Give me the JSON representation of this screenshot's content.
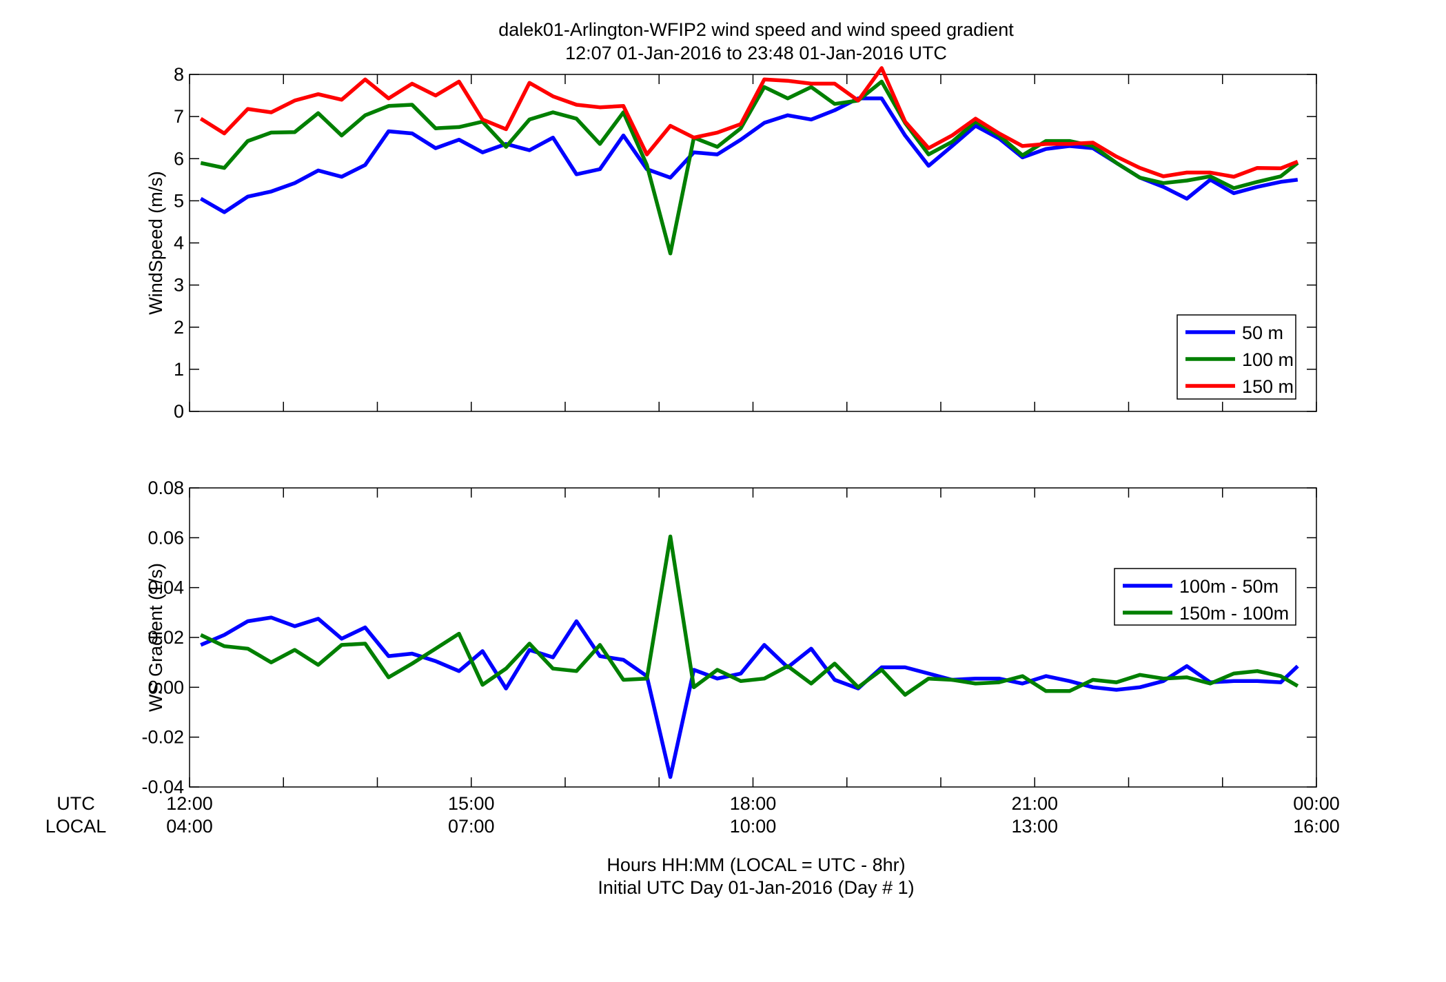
{
  "figure": {
    "title_line1": "dalek01-Arlington-WFIP2  wind speed and wind speed gradient",
    "title_line2": "12:07 01-Jan-2016 to 23:48 01-Jan-2016  UTC",
    "xlabel_line1": "Hours HH:MM  (LOCAL = UTC - 8hr)",
    "xlabel_line2": "Initial UTC Day 01-Jan-2016 (Day # 1)",
    "row_label_utc": "UTC",
    "row_label_local": "LOCAL",
    "utc_ticks": [
      "12:00",
      "15:00",
      "18:00",
      "21:00",
      "00:00"
    ],
    "local_ticks": [
      "04:00",
      "07:00",
      "10:00",
      "13:00",
      "16:00"
    ]
  },
  "chart_data": [
    {
      "type": "line",
      "ylabel": "WindSpeed (m/s)",
      "ylim": [
        0,
        8
      ],
      "yticks": [
        0,
        1,
        2,
        3,
        4,
        5,
        6,
        7,
        8
      ],
      "xlim": [
        12,
        24
      ],
      "grid": false,
      "legend_position": "lower-right",
      "x": [
        12.12,
        12.37,
        12.62,
        12.87,
        13.12,
        13.37,
        13.62,
        13.87,
        14.12,
        14.37,
        14.62,
        14.87,
        15.12,
        15.37,
        15.62,
        15.87,
        16.12,
        16.37,
        16.62,
        16.87,
        17.12,
        17.37,
        17.62,
        17.87,
        18.12,
        18.37,
        18.62,
        18.87,
        19.12,
        19.37,
        19.62,
        19.87,
        20.12,
        20.37,
        20.62,
        20.87,
        21.12,
        21.37,
        21.62,
        21.87,
        22.12,
        22.37,
        22.62,
        22.87,
        23.12,
        23.37,
        23.62,
        23.8
      ],
      "series": [
        {
          "name": "50 m",
          "color": "#0000ff",
          "values": [
            5.05,
            4.73,
            5.1,
            5.22,
            5.42,
            5.72,
            5.57,
            5.85,
            6.65,
            6.6,
            6.25,
            6.45,
            6.15,
            6.35,
            6.2,
            6.5,
            5.63,
            5.75,
            6.55,
            5.75,
            5.55,
            6.15,
            6.1,
            6.45,
            6.85,
            7.03,
            6.93,
            7.15,
            7.43,
            7.43,
            6.55,
            5.83,
            6.3,
            6.78,
            6.48,
            6.03,
            6.23,
            6.3,
            6.25,
            5.9,
            5.55,
            5.33,
            5.05,
            5.5,
            5.18,
            5.33,
            5.45,
            5.5
          ]
        },
        {
          "name": "100 m",
          "color": "#007f00",
          "values": [
            5.9,
            5.78,
            6.42,
            6.62,
            6.63,
            7.08,
            6.55,
            7.03,
            7.25,
            7.28,
            6.72,
            6.75,
            6.88,
            6.28,
            6.93,
            7.1,
            6.95,
            6.35,
            7.1,
            5.85,
            3.75,
            6.5,
            6.28,
            6.72,
            7.7,
            7.43,
            7.7,
            7.3,
            7.38,
            7.83,
            6.85,
            6.1,
            6.4,
            6.88,
            6.55,
            6.08,
            6.42,
            6.42,
            6.3,
            5.9,
            5.55,
            5.42,
            5.48,
            5.58,
            5.3,
            5.45,
            5.58,
            5.9
          ]
        },
        {
          "name": "150 m",
          "color": "#ff0000",
          "values": [
            6.95,
            6.6,
            7.18,
            7.1,
            7.38,
            7.53,
            7.4,
            7.88,
            7.43,
            7.78,
            7.5,
            7.83,
            6.93,
            6.7,
            7.8,
            7.48,
            7.28,
            7.22,
            7.25,
            6.1,
            6.78,
            6.5,
            6.62,
            6.82,
            7.88,
            7.85,
            7.78,
            7.78,
            7.38,
            8.15,
            6.88,
            6.25,
            6.55,
            6.95,
            6.6,
            6.3,
            6.35,
            6.35,
            6.38,
            6.05,
            5.78,
            5.58,
            5.67,
            5.67,
            5.57,
            5.78,
            5.77,
            5.93
          ]
        }
      ]
    },
    {
      "type": "line",
      "ylabel": "WS Gradient (1/s)",
      "ylim": [
        -0.04,
        0.08
      ],
      "yticks": [
        -0.04,
        -0.02,
        0,
        0.02,
        0.04,
        0.06,
        0.08
      ],
      "xlim": [
        12,
        24
      ],
      "grid": false,
      "legend_position": "right",
      "x": [
        12.12,
        12.37,
        12.62,
        12.87,
        13.12,
        13.37,
        13.62,
        13.87,
        14.12,
        14.37,
        14.62,
        14.87,
        15.12,
        15.37,
        15.62,
        15.87,
        16.12,
        16.37,
        16.62,
        16.87,
        17.12,
        17.37,
        17.62,
        17.87,
        18.12,
        18.37,
        18.62,
        18.87,
        19.12,
        19.37,
        19.62,
        19.87,
        20.12,
        20.37,
        20.62,
        20.87,
        21.12,
        21.37,
        21.62,
        21.87,
        22.12,
        22.37,
        22.62,
        22.87,
        23.12,
        23.37,
        23.62,
        23.8
      ],
      "series": [
        {
          "name": "100m - 50m",
          "color": "#0000ff",
          "values": [
            0.017,
            0.021,
            0.0265,
            0.028,
            0.0245,
            0.0275,
            0.0195,
            0.024,
            0.0125,
            0.0135,
            0.0105,
            0.0065,
            0.0145,
            -0.0005,
            0.015,
            0.012,
            0.0265,
            0.0125,
            0.011,
            0.0045,
            -0.036,
            0.007,
            0.0035,
            0.0055,
            0.017,
            0.008,
            0.0155,
            0.003,
            -0.0005,
            0.008,
            0.008,
            0.0055,
            0.003,
            0.0035,
            0.0035,
            0.0015,
            0.0045,
            0.0025,
            0.0,
            -0.001,
            0.0,
            0.0025,
            0.0085,
            0.002,
            0.0025,
            0.0025,
            0.002,
            0.0085
          ]
        },
        {
          "name": "150m - 100m",
          "color": "#007f00",
          "values": [
            0.021,
            0.0165,
            0.0155,
            0.01,
            0.015,
            0.009,
            0.017,
            0.0175,
            0.004,
            0.0095,
            0.0155,
            0.0215,
            0.001,
            0.0075,
            0.0175,
            0.0075,
            0.0065,
            0.017,
            0.003,
            0.0035,
            0.0605,
            0.0,
            0.007,
            0.0025,
            0.0035,
            0.0085,
            0.0015,
            0.0095,
            0.0,
            0.007,
            -0.003,
            0.0035,
            0.003,
            0.0015,
            0.002,
            0.0045,
            -0.0015,
            -0.0015,
            0.003,
            0.002,
            0.005,
            0.0035,
            0.004,
            0.0015,
            0.0055,
            0.0065,
            0.0045,
            0.0005
          ]
        }
      ]
    }
  ]
}
